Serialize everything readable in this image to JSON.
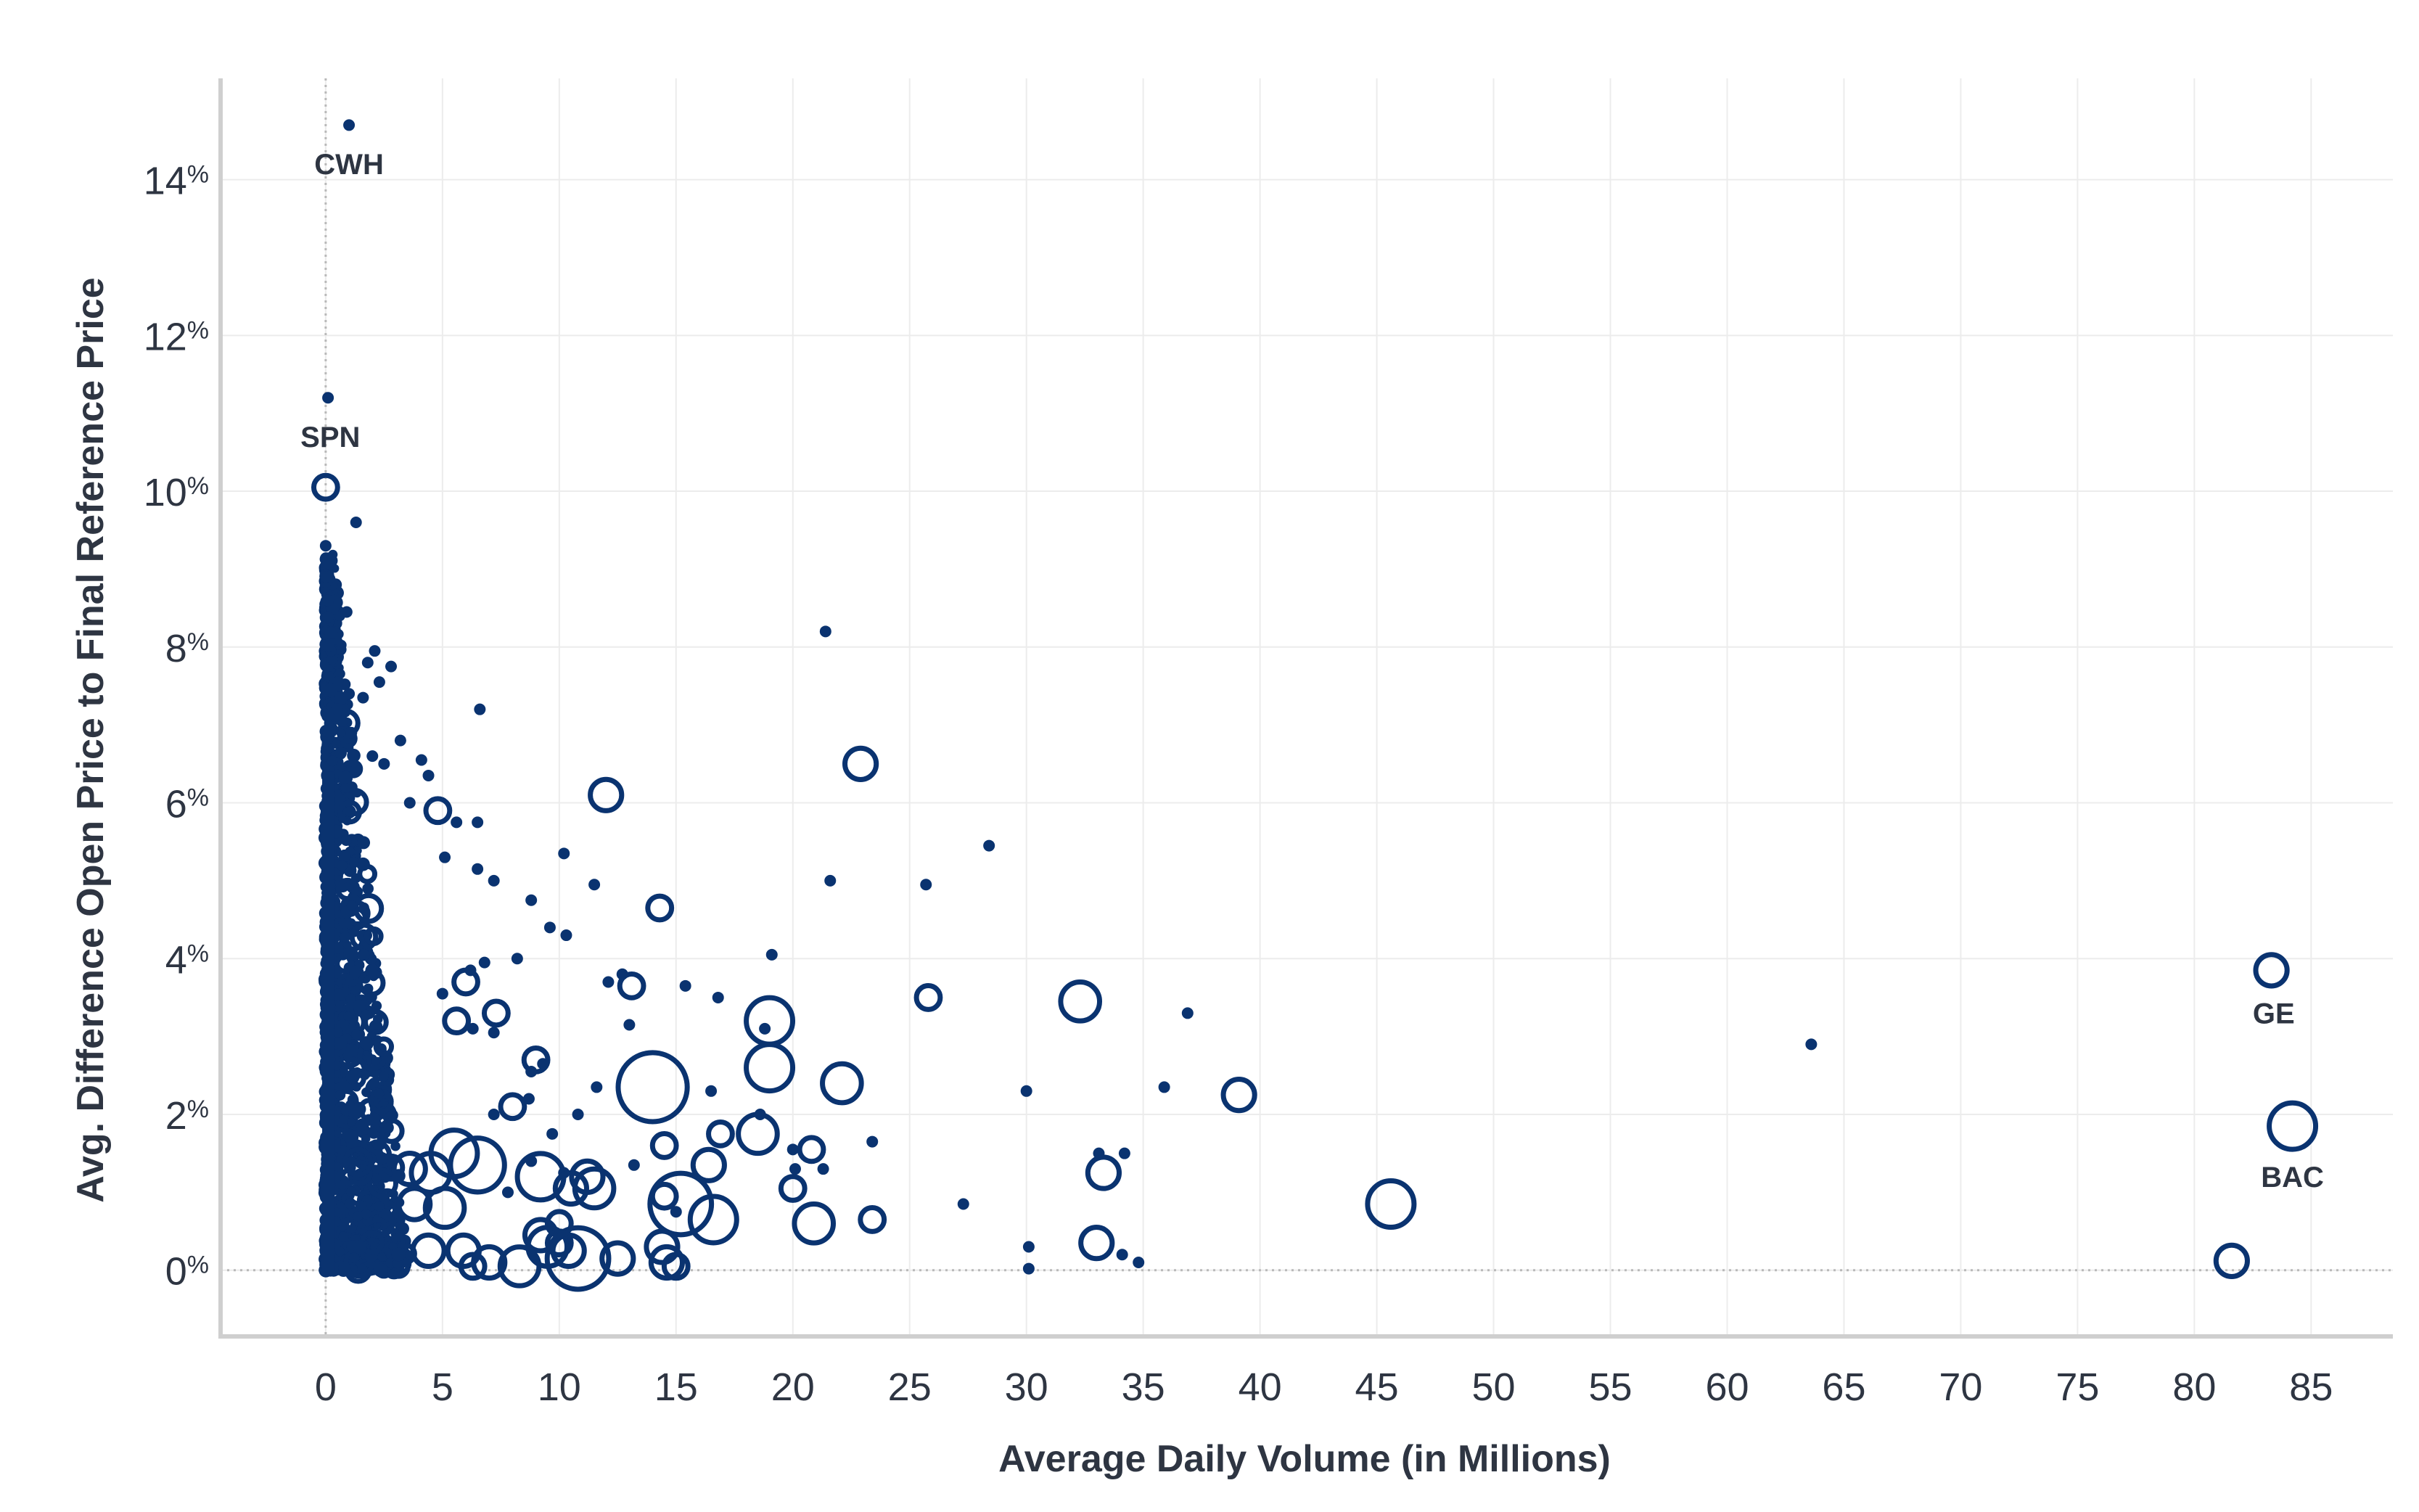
{
  "chart_data": {
    "type": "scatter",
    "xlabel": "Average Daily Volume (in Millions)",
    "ylabel": "Avg. Difference Open Price to Final Reference Price",
    "xlim": [
      -4.5,
      88.5
    ],
    "ylim": [
      -0.85,
      15.3
    ],
    "x_ticks": [
      0,
      5,
      10,
      15,
      20,
      25,
      30,
      35,
      40,
      45,
      50,
      55,
      60,
      65,
      70,
      75,
      80,
      85
    ],
    "y_ticks": [
      {
        "value": 0,
        "label": "0",
        "suffix": "%"
      },
      {
        "value": 2,
        "label": "2",
        "suffix": "%"
      },
      {
        "value": 4,
        "label": "4",
        "suffix": "%"
      },
      {
        "value": 6,
        "label": "6",
        "suffix": "%"
      },
      {
        "value": 8,
        "label": "8",
        "suffix": "%"
      },
      {
        "value": 10,
        "label": "10",
        "suffix": "%"
      },
      {
        "value": 12,
        "label": "12",
        "suffix": "%"
      },
      {
        "value": 14,
        "label": "14",
        "suffix": "%"
      }
    ],
    "grid": true,
    "color": "#0a3370",
    "annotations": [
      {
        "text": "CWH",
        "x": 1.0,
        "y": 14.2
      },
      {
        "text": "SPN",
        "x": 0.2,
        "y": 10.7
      },
      {
        "text": "GE",
        "x": 83.4,
        "y": 3.3
      },
      {
        "text": "BAC",
        "x": 84.2,
        "y": 1.2
      }
    ],
    "points": [
      [
        1.0,
        14.7,
        1
      ],
      [
        0.1,
        11.2,
        1
      ],
      [
        0.0,
        10.05,
        2
      ],
      [
        1.3,
        9.6,
        1
      ],
      [
        0.0,
        9.3,
        1
      ],
      [
        0.05,
        9.1,
        1
      ],
      [
        0.0,
        8.9,
        1
      ],
      [
        0.1,
        8.6,
        1
      ],
      [
        0.9,
        8.45,
        1
      ],
      [
        2.1,
        7.95,
        1
      ],
      [
        1.8,
        7.8,
        1
      ],
      [
        2.8,
        7.75,
        1
      ],
      [
        2.3,
        7.55,
        1
      ],
      [
        6.6,
        7.2,
        1
      ],
      [
        1.0,
        7.4,
        1
      ],
      [
        1.6,
        7.35,
        1
      ],
      [
        0.5,
        7.2,
        1
      ],
      [
        1.1,
        6.9,
        1
      ],
      [
        3.2,
        6.8,
        1
      ],
      [
        2.0,
        6.6,
        1
      ],
      [
        2.5,
        6.5,
        1
      ],
      [
        4.1,
        6.55,
        1
      ],
      [
        4.4,
        6.35,
        1
      ],
      [
        3.6,
        6.0,
        1
      ],
      [
        4.8,
        5.9,
        2
      ],
      [
        5.6,
        5.75,
        1
      ],
      [
        6.5,
        5.75,
        1
      ],
      [
        5.1,
        5.3,
        1
      ],
      [
        6.5,
        5.15,
        1
      ],
      [
        7.2,
        5.0,
        1
      ],
      [
        12.0,
        6.1,
        3
      ],
      [
        10.2,
        5.35,
        1
      ],
      [
        11.5,
        4.95,
        1
      ],
      [
        14.3,
        4.65,
        2
      ],
      [
        8.8,
        4.75,
        1
      ],
      [
        9.6,
        4.4,
        1
      ],
      [
        10.3,
        4.3,
        1
      ],
      [
        8.2,
        4.0,
        1
      ],
      [
        6.8,
        3.95,
        1
      ],
      [
        6.2,
        3.85,
        1
      ],
      [
        5.0,
        3.55,
        1
      ],
      [
        6.0,
        3.7,
        2
      ],
      [
        7.3,
        3.3,
        2
      ],
      [
        5.6,
        3.2,
        2
      ],
      [
        6.3,
        3.1,
        1
      ],
      [
        7.2,
        3.05,
        1
      ],
      [
        12.7,
        3.8,
        1
      ],
      [
        13.1,
        3.65,
        2
      ],
      [
        12.1,
        3.7,
        1
      ],
      [
        15.4,
        3.65,
        1
      ],
      [
        16.8,
        3.5,
        1
      ],
      [
        13.0,
        3.15,
        1
      ],
      [
        19.1,
        4.05,
        1
      ],
      [
        21.4,
        8.2,
        1
      ],
      [
        22.9,
        6.5,
        3
      ],
      [
        21.6,
        5.0,
        1
      ],
      [
        25.7,
        4.95,
        1
      ],
      [
        28.4,
        5.45,
        1
      ],
      [
        25.8,
        3.5,
        2
      ],
      [
        32.3,
        3.45,
        4
      ],
      [
        36.9,
        3.3,
        1
      ],
      [
        19.0,
        3.2,
        5
      ],
      [
        18.8,
        3.1,
        1
      ],
      [
        19.0,
        2.6,
        5
      ],
      [
        22.1,
        2.4,
        4
      ],
      [
        14.0,
        2.35,
        8
      ],
      [
        9.0,
        2.7,
        2
      ],
      [
        8.8,
        2.55,
        1
      ],
      [
        9.3,
        2.65,
        1
      ],
      [
        11.6,
        2.35,
        1
      ],
      [
        8.7,
        2.2,
        1
      ],
      [
        8.0,
        2.1,
        2
      ],
      [
        7.2,
        2.0,
        1
      ],
      [
        10.8,
        2.0,
        1
      ],
      [
        16.5,
        2.3,
        1
      ],
      [
        18.6,
        2.0,
        1
      ],
      [
        16.9,
        1.75,
        2
      ],
      [
        18.5,
        1.75,
        4
      ],
      [
        20.0,
        1.55,
        1
      ],
      [
        20.8,
        1.55,
        2
      ],
      [
        23.4,
        1.65,
        1
      ],
      [
        20.1,
        1.3,
        1
      ],
      [
        21.3,
        1.3,
        1
      ],
      [
        14.5,
        1.6,
        2
      ],
      [
        16.4,
        1.35,
        3
      ],
      [
        9.2,
        1.2,
        5
      ],
      [
        10.2,
        1.25,
        1
      ],
      [
        11.2,
        1.2,
        3
      ],
      [
        11.5,
        1.05,
        4
      ],
      [
        10.5,
        1.05,
        3
      ],
      [
        13.2,
        1.35,
        1
      ],
      [
        14.5,
        0.95,
        2
      ],
      [
        15.2,
        0.85,
        7
      ],
      [
        15.0,
        0.75,
        1
      ],
      [
        16.6,
        0.65,
        5
      ],
      [
        20.0,
        1.05,
        2
      ],
      [
        20.9,
        0.6,
        4
      ],
      [
        23.4,
        0.65,
        2
      ],
      [
        27.3,
        0.85,
        1
      ],
      [
        30.0,
        2.3,
        1
      ],
      [
        30.1,
        0.3,
        1
      ],
      [
        30.1,
        0.02,
        1
      ],
      [
        33.1,
        1.5,
        1
      ],
      [
        33.3,
        1.25,
        3
      ],
      [
        34.2,
        1.5,
        1
      ],
      [
        33.0,
        0.35,
        3
      ],
      [
        34.1,
        0.2,
        1
      ],
      [
        34.8,
        0.1,
        1
      ],
      [
        35.9,
        2.35,
        1
      ],
      [
        39.1,
        2.25,
        3
      ],
      [
        45.6,
        0.85,
        5
      ],
      [
        63.6,
        2.9,
        1
      ],
      [
        83.3,
        3.85,
        3
      ],
      [
        84.2,
        1.85,
        5
      ],
      [
        81.6,
        0.12,
        3
      ],
      [
        10.8,
        0.15,
        7
      ],
      [
        12.5,
        0.15,
        3
      ],
      [
        9.2,
        0.45,
        3
      ],
      [
        9.5,
        0.3,
        4
      ],
      [
        10.0,
        0.35,
        2
      ],
      [
        10.4,
        0.25,
        3
      ],
      [
        8.3,
        0.05,
        4
      ],
      [
        7.0,
        0.1,
        3
      ],
      [
        6.3,
        0.05,
        2
      ],
      [
        5.9,
        0.25,
        3
      ],
      [
        14.4,
        0.3,
        3
      ],
      [
        14.6,
        0.1,
        3
      ],
      [
        15.0,
        0.05,
        2
      ],
      [
        6.5,
        1.35,
        6
      ],
      [
        5.5,
        1.5,
        5
      ],
      [
        4.5,
        1.25,
        4
      ],
      [
        3.6,
        1.3,
        3
      ],
      [
        5.1,
        0.8,
        4
      ],
      [
        3.8,
        0.85,
        3
      ],
      [
        4.4,
        0.25,
        3
      ],
      [
        9.7,
        1.75,
        1
      ],
      [
        10.0,
        0.6,
        2
      ],
      [
        7.8,
        1.0,
        1
      ],
      [
        8.8,
        1.4,
        1
      ]
    ]
  }
}
